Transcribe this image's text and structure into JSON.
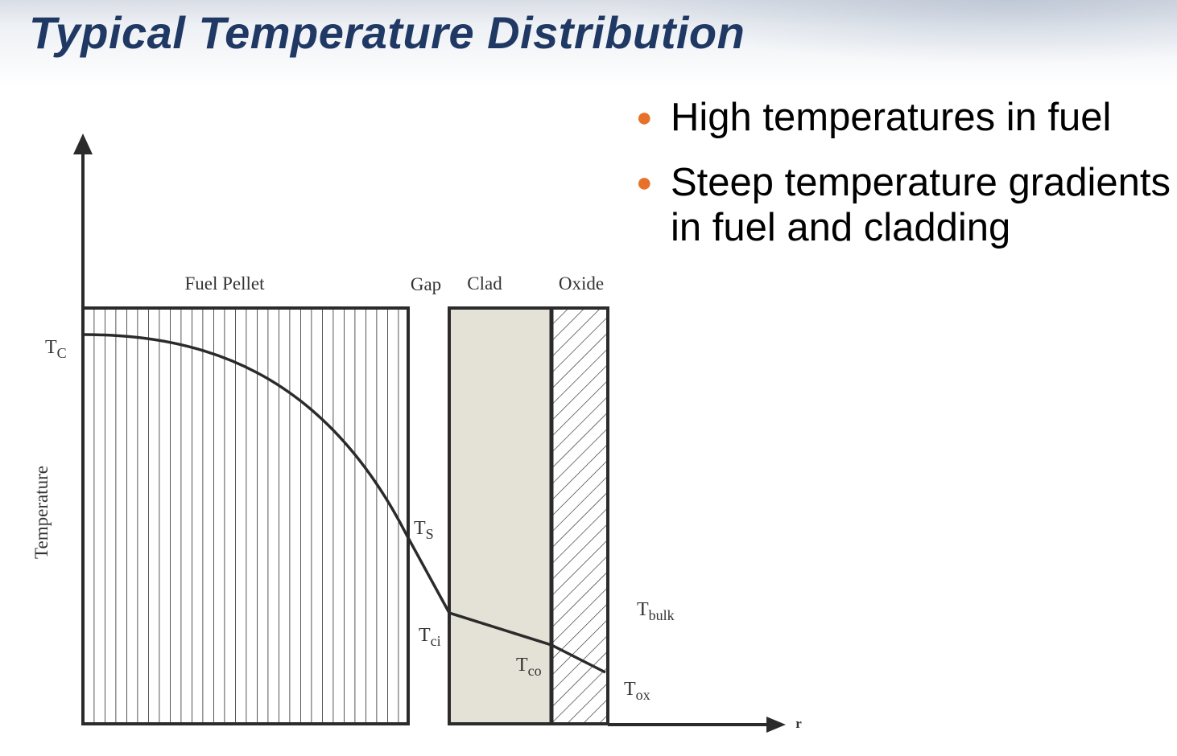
{
  "slide": {
    "title": "Typical Temperature Distribution"
  },
  "bullets": [
    {
      "text": "High temperatures in fuel"
    },
    {
      "text": "Steep temperature gradients in fuel and cladding"
    }
  ],
  "colors": {
    "title": "#1f3864",
    "bullet_marker": "#e8712a",
    "clad_fill": "#e4e1d6",
    "line": "#2b2b2b"
  },
  "diagram": {
    "y_axis_label": "Temperature",
    "x_axis_label": "r",
    "regions": {
      "fuel_pellet": "Fuel Pellet",
      "gap": "Gap",
      "clad": "Clad",
      "oxide": "Oxide"
    },
    "points": {
      "tc": {
        "main": "T",
        "sub": "C"
      },
      "ts": {
        "main": "T",
        "sub": "S"
      },
      "tci": {
        "main": "T",
        "sub": "ci"
      },
      "tco": {
        "main": "T",
        "sub": "co"
      },
      "tox": {
        "main": "T",
        "sub": "ox"
      },
      "tbulk": {
        "main": "T",
        "sub": "bulk"
      }
    }
  }
}
